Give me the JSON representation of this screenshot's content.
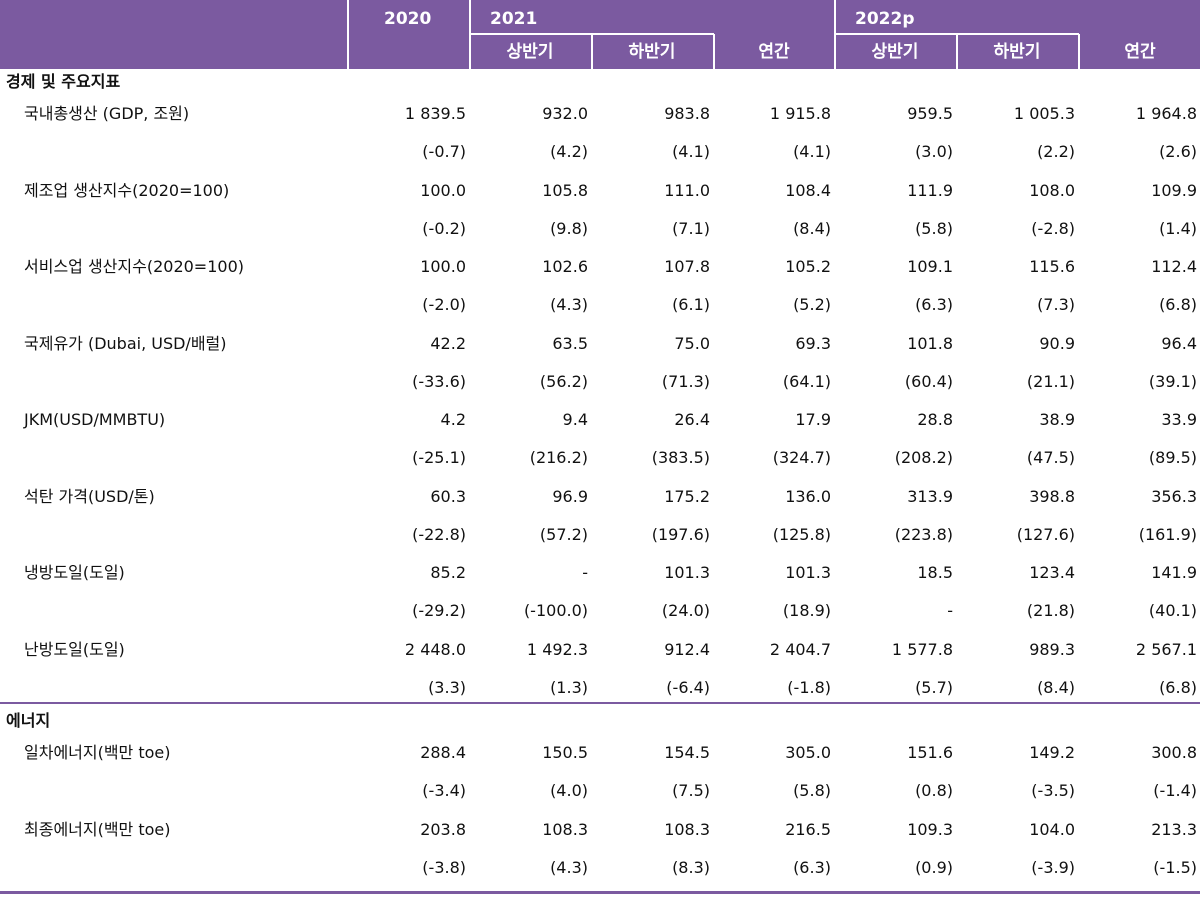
{
  "header": {
    "years": [
      "2020",
      "2021",
      "2022p"
    ],
    "sub_h1": "상반기",
    "sub_h2": "하반기",
    "sub_annual": "연간"
  },
  "sections": [
    {
      "title": "경제 및 주요지표",
      "rows": [
        {
          "label": "국내총생산 (GDP, 조원)",
          "values": [
            "1 839.5",
            "932.0",
            "983.8",
            "1 915.8",
            "959.5",
            "1 005.3",
            "1 964.8"
          ],
          "growth": [
            "(-0.7)",
            "(4.2)",
            "(4.1)",
            "(4.1)",
            "(3.0)",
            "(2.2)",
            "(2.6)"
          ]
        },
        {
          "label": "제조업 생산지수(2020=100)",
          "values": [
            "100.0",
            "105.8",
            "111.0",
            "108.4",
            "111.9",
            "108.0",
            "109.9"
          ],
          "growth": [
            "(-0.2)",
            "(9.8)",
            "(7.1)",
            "(8.4)",
            "(5.8)",
            "(-2.8)",
            "(1.4)"
          ]
        },
        {
          "label": "서비스업 생산지수(2020=100)",
          "values": [
            "100.0",
            "102.6",
            "107.8",
            "105.2",
            "109.1",
            "115.6",
            "112.4"
          ],
          "growth": [
            "(-2.0)",
            "(4.3)",
            "(6.1)",
            "(5.2)",
            "(6.3)",
            "(7.3)",
            "(6.8)"
          ]
        },
        {
          "label": "국제유가 (Dubai, USD/배럴)",
          "values": [
            "42.2",
            "63.5",
            "75.0",
            "69.3",
            "101.8",
            "90.9",
            "96.4"
          ],
          "growth": [
            "(-33.6)",
            "(56.2)",
            "(71.3)",
            "(64.1)",
            "(60.4)",
            "(21.1)",
            "(39.1)"
          ]
        },
        {
          "label": "JKM(USD/MMBTU)",
          "values": [
            "4.2",
            "9.4",
            "26.4",
            "17.9",
            "28.8",
            "38.9",
            "33.9"
          ],
          "growth": [
            "(-25.1)",
            "(216.2)",
            "(383.5)",
            "(324.7)",
            "(208.2)",
            "(47.5)",
            "(89.5)"
          ]
        },
        {
          "label": "석탄 가격(USD/톤)",
          "values": [
            "60.3",
            "96.9",
            "175.2",
            "136.0",
            "313.9",
            "398.8",
            "356.3"
          ],
          "growth": [
            "(-22.8)",
            "(57.2)",
            "(197.6)",
            "(125.8)",
            "(223.8)",
            "(127.6)",
            "(161.9)"
          ]
        },
        {
          "label": "냉방도일(도일)",
          "values": [
            "85.2",
            "-",
            "101.3",
            "101.3",
            "18.5",
            "123.4",
            "141.9"
          ],
          "growth": [
            "(-29.2)",
            "(-100.0)",
            "(24.0)",
            "(18.9)",
            "-",
            "(21.8)",
            "(40.1)"
          ]
        },
        {
          "label": "난방도일(도일)",
          "values": [
            "2 448.0",
            "1 492.3",
            "912.4",
            "2 404.7",
            "1 577.8",
            "989.3",
            "2 567.1"
          ],
          "growth": [
            "(3.3)",
            "(1.3)",
            "(-6.4)",
            "(-1.8)",
            "(5.7)",
            "(8.4)",
            "(6.8)"
          ]
        }
      ]
    },
    {
      "title": "에너지",
      "rows": [
        {
          "label": "일차에너지(백만 toe)",
          "values": [
            "288.4",
            "150.5",
            "154.5",
            "305.0",
            "151.6",
            "149.2",
            "300.8"
          ],
          "growth": [
            "(-3.4)",
            "(4.0)",
            "(7.5)",
            "(5.8)",
            "(0.8)",
            "(-3.5)",
            "(-1.4)"
          ]
        },
        {
          "label": "최종에너지(백만 toe)",
          "values": [
            "203.8",
            "108.3",
            "108.3",
            "216.5",
            "109.3",
            "104.0",
            "213.3"
          ],
          "growth": [
            "(-3.8)",
            "(4.3)",
            "(8.3)",
            "(6.3)",
            "(0.9)",
            "(-3.9)",
            "(-1.5)"
          ]
        }
      ]
    }
  ],
  "colors": {
    "header_bg": "#7b5aa0",
    "header_text": "#ffffff",
    "rule": "#7b5aa0"
  }
}
